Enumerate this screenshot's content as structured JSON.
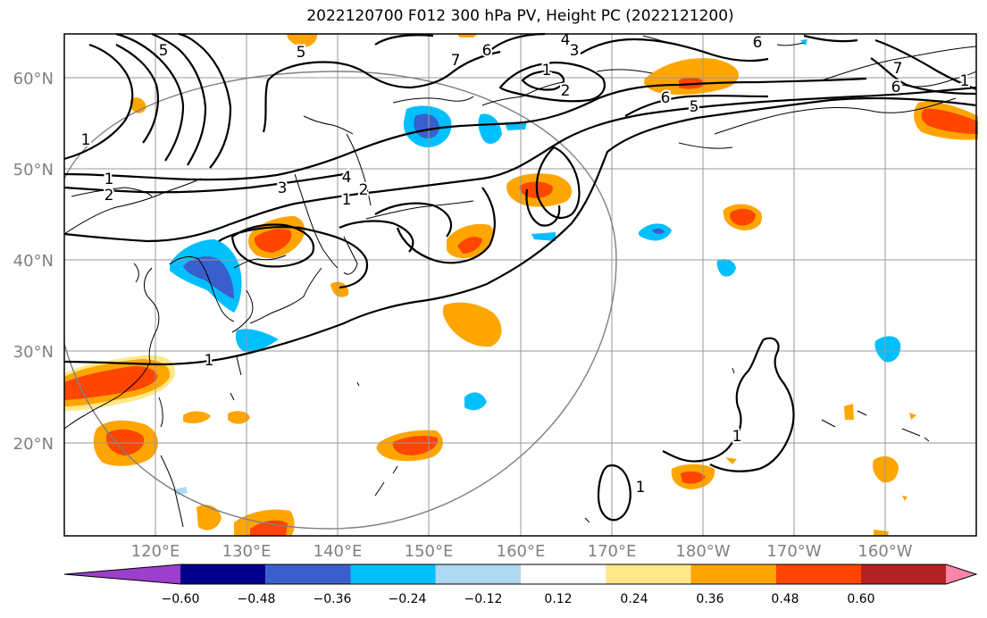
{
  "title": "2022120700 F012 300 hPa PV, Height PC (2022121200)",
  "lat_labels": [
    "60°N",
    "50°N",
    "40°N",
    "30°N",
    "20°N"
  ],
  "lon_labels": [
    "120°E",
    "130°E",
    "140°E",
    "150°E",
    "160°E",
    "170°E",
    "180°W",
    "170°W",
    "160°W"
  ],
  "colorbar": {
    "ticks": [
      "−0.60",
      "−0.48",
      "−0.36",
      "−0.24",
      "−0.12",
      "0.12",
      "0.24",
      "0.36",
      "0.48",
      "0.60"
    ],
    "colors": [
      "#9b3fcc",
      "#00008b",
      "#3a5fcd",
      "#00bfff",
      "#add8f0",
      "#ffffff",
      "#ffe98a",
      "#ffa500",
      "#ff4500",
      "#b22222",
      "#ff85a8"
    ],
    "extend": "both"
  },
  "contour_labels": [
    "5",
    "5",
    "1",
    "1",
    "2",
    "3",
    "4",
    "1",
    "2",
    "7",
    "6",
    "4",
    "3",
    "1",
    "2",
    "6",
    "5",
    "6",
    "7",
    "6",
    "1",
    "1",
    "1",
    "1"
  ],
  "map": {
    "projection": "cylindrical",
    "lon_range": [
      110,
      210
    ],
    "lat_range": [
      10,
      65
    ],
    "grid": true,
    "colors": {
      "frame": "#000000",
      "grid": "#999999",
      "coast": "#000000",
      "contour": "#000000",
      "circle": "#808080",
      "tick_label": "#808080"
    }
  }
}
